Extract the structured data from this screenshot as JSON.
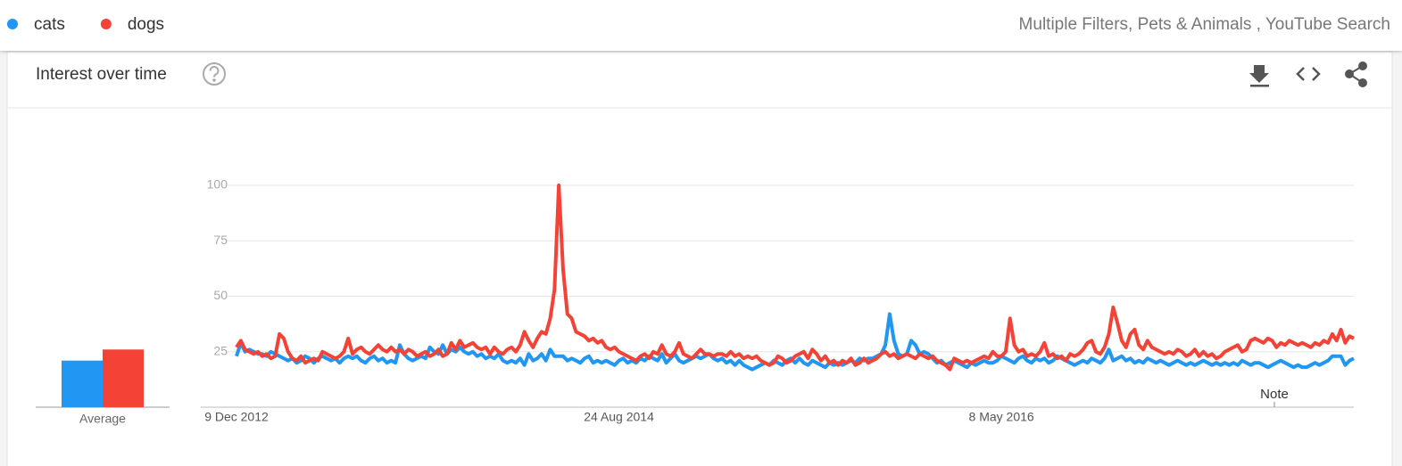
{
  "header": {
    "filters": "Multiple Filters, Pets & Animals , YouTube Search"
  },
  "chart_data": {
    "type": "line",
    "title": "Interest over time",
    "annotation": "Note",
    "average_label": "Average",
    "categories": [
      "9 Dec 2012",
      null,
      null,
      null,
      null,
      null,
      null,
      null,
      null,
      null,
      null,
      null,
      null,
      null,
      null,
      null,
      null,
      null,
      null,
      null,
      null,
      null,
      null,
      null,
      null,
      null,
      null,
      null,
      null,
      null,
      null,
      null,
      null,
      null,
      null,
      null,
      null,
      null,
      null,
      null,
      null,
      null,
      null,
      null,
      null,
      null,
      null,
      null,
      null,
      null,
      null,
      null,
      null,
      null,
      null,
      null,
      null,
      null,
      null,
      null,
      null,
      null,
      null,
      null,
      null,
      null,
      null,
      null,
      null,
      null,
      null,
      null,
      null,
      null,
      null,
      null,
      null,
      null,
      null,
      null,
      null,
      null,
      null,
      null,
      null,
      null,
      null,
      null,
      null,
      "24 Aug 2014",
      null,
      null,
      null,
      null,
      null,
      null,
      null,
      null,
      null,
      null,
      null,
      null,
      null,
      null,
      null,
      null,
      null,
      null,
      null,
      null,
      null,
      null,
      null,
      null,
      null,
      null,
      null,
      null,
      null,
      null,
      null,
      null,
      null,
      null,
      null,
      null,
      null,
      null,
      null,
      null,
      null,
      null,
      null,
      null,
      null,
      null,
      null,
      null,
      null,
      null,
      null,
      null,
      null,
      null,
      null,
      null,
      null,
      null,
      null,
      null,
      null,
      null,
      null,
      null,
      null,
      null,
      null,
      null,
      null,
      null,
      null,
      null,
      null,
      null,
      null,
      null,
      null,
      null,
      null,
      null,
      null,
      null,
      null,
      null,
      null,
      null,
      null,
      null,
      "8 May 2016",
      null,
      null,
      null,
      null,
      null,
      null,
      null,
      null,
      null,
      null,
      null,
      null,
      null,
      null,
      null,
      null,
      null,
      null,
      null,
      null,
      null,
      null,
      null,
      null,
      null,
      null,
      null,
      null,
      null,
      null,
      null,
      null,
      null,
      null,
      null,
      null,
      null,
      null,
      null,
      null,
      null,
      null,
      null,
      null,
      null,
      null,
      null,
      null,
      null,
      null,
      null,
      null,
      null,
      null,
      null,
      null,
      null,
      null,
      null,
      null,
      null,
      null,
      null,
      null,
      null,
      null,
      null,
      null,
      null,
      null,
      null,
      null,
      null,
      null,
      null,
      null,
      null,
      null,
      null,
      null,
      null,
      null
    ],
    "series": [
      {
        "name": "cats",
        "color": "#2196f3",
        "average": 21,
        "values": [
          23,
          29,
          25,
          26,
          25,
          24,
          24,
          23,
          25,
          24,
          23,
          22,
          21,
          22,
          20,
          21,
          23,
          22,
          20,
          22,
          23,
          22,
          21,
          22,
          20,
          22,
          23,
          22,
          23,
          21,
          20,
          22,
          23,
          21,
          22,
          20,
          21,
          20,
          28,
          24,
          22,
          21,
          22,
          23,
          22,
          27,
          25,
          24,
          28,
          24,
          26,
          25,
          27,
          25,
          24,
          25,
          23,
          24,
          22,
          23,
          22,
          24,
          21,
          20,
          21,
          20,
          22,
          19,
          24,
          21,
          22,
          24,
          21,
          26,
          23,
          23,
          23,
          21,
          22,
          21,
          20,
          22,
          23,
          20,
          21,
          20,
          21,
          20,
          19,
          21,
          22,
          20,
          21,
          20,
          22,
          21,
          23,
          22,
          21,
          24,
          20,
          22,
          24,
          21,
          20,
          21,
          22,
          23,
          22,
          23,
          24,
          22,
          21,
          22,
          20,
          21,
          19,
          21,
          19,
          18,
          17,
          18,
          19,
          20,
          19,
          21,
          20,
          19,
          21,
          22,
          20,
          22,
          20,
          19,
          21,
          20,
          19,
          18,
          20,
          19,
          20,
          19,
          20,
          21,
          20,
          22,
          21,
          22,
          22,
          23,
          24,
          28,
          42,
          30,
          24,
          23,
          24,
          30,
          28,
          24,
          25,
          24,
          22,
          20,
          21,
          19,
          20,
          21,
          20,
          19,
          18,
          20,
          19,
          20,
          21,
          20,
          20,
          21,
          23,
          22,
          21,
          20,
          22,
          23,
          21,
          20,
          22,
          21,
          22,
          20,
          21,
          23,
          22,
          21,
          20,
          19,
          20,
          21,
          20,
          22,
          21,
          20,
          22,
          26,
          21,
          22,
          23,
          21,
          22,
          20,
          21,
          20,
          22,
          21,
          20,
          21,
          20,
          19,
          20,
          21,
          20,
          19,
          20,
          19,
          20,
          21,
          20,
          19,
          20,
          19,
          20,
          19,
          20,
          19,
          21,
          20,
          19,
          20,
          20,
          19,
          18,
          19,
          20,
          21,
          20,
          19,
          18,
          19,
          18,
          18,
          19,
          20,
          19,
          20,
          21,
          23,
          23,
          23,
          19,
          21,
          22
        ]
      },
      {
        "name": "dogs",
        "color": "#f44336",
        "average": 26,
        "values": [
          27,
          30,
          26,
          25,
          24,
          25,
          23,
          24,
          22,
          23,
          33,
          31,
          25,
          22,
          21,
          23,
          20,
          21,
          22,
          21,
          25,
          24,
          23,
          22,
          23,
          25,
          31,
          24,
          26,
          27,
          25,
          24,
          26,
          28,
          26,
          25,
          27,
          25,
          26,
          24,
          26,
          25,
          23,
          24,
          25,
          23,
          24,
          26,
          23,
          24,
          29,
          26,
          30,
          27,
          28,
          29,
          27,
          26,
          27,
          24,
          27,
          25,
          24,
          26,
          27,
          25,
          28,
          34,
          30,
          27,
          31,
          34,
          33,
          40,
          53,
          100,
          62,
          42,
          40,
          34,
          33,
          32,
          30,
          31,
          29,
          30,
          27,
          26,
          27,
          25,
          24,
          23,
          22,
          21,
          23,
          24,
          22,
          25,
          24,
          28,
          24,
          23,
          25,
          29,
          24,
          23,
          22,
          24,
          26,
          24,
          24,
          23,
          24,
          24,
          23,
          25,
          23,
          24,
          22,
          23,
          22,
          23,
          21,
          20,
          19,
          20,
          23,
          22,
          20,
          21,
          23,
          24,
          25,
          22,
          26,
          24,
          21,
          23,
          20,
          21,
          19,
          21,
          20,
          22,
          19,
          20,
          22,
          20,
          21,
          22,
          24,
          25,
          23,
          24,
          22,
          23,
          24,
          23,
          22,
          24,
          23,
          22,
          23,
          21,
          20,
          19,
          17,
          22,
          21,
          20,
          21,
          20,
          21,
          22,
          23,
          22,
          25,
          23,
          23,
          25,
          40,
          28,
          25,
          26,
          23,
          24,
          23,
          25,
          29,
          23,
          24,
          22,
          23,
          21,
          24,
          23,
          24,
          26,
          29,
          30,
          25,
          24,
          27,
          33,
          45,
          38,
          30,
          27,
          33,
          35,
          28,
          26,
          30,
          27,
          26,
          25,
          24,
          25,
          24,
          26,
          25,
          23,
          24,
          26,
          23,
          25,
          23,
          24,
          22,
          23,
          25,
          26,
          27,
          28,
          25,
          26,
          30,
          31,
          30,
          29,
          31,
          30,
          27,
          29,
          28,
          30,
          29,
          28,
          29,
          28,
          27,
          29,
          28,
          30,
          29,
          33,
          30,
          35,
          29,
          32,
          31
        ]
      }
    ],
    "ylim": [
      0,
      100
    ],
    "yticks": [
      25,
      50,
      75,
      100
    ],
    "grid": true
  }
}
